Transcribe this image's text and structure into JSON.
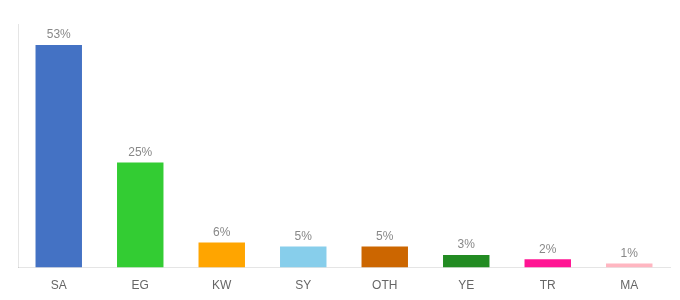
{
  "chart_data": {
    "type": "bar",
    "categories": [
      "SA",
      "EG",
      "KW",
      "SY",
      "OTH",
      "YE",
      "TR",
      "MA"
    ],
    "values": [
      53,
      25,
      6,
      5,
      5,
      3,
      2,
      1
    ],
    "value_labels": [
      "53%",
      "25%",
      "6%",
      "5%",
      "5%",
      "3%",
      "2%",
      "1%"
    ],
    "colors": [
      "#4472C4",
      "#33CC33",
      "#FFA500",
      "#87CEEB",
      "#CC6600",
      "#228B22",
      "#FF1493",
      "#FFB6C1"
    ],
    "ylim": [
      0,
      58
    ],
    "data_labels": true,
    "tick_labels": "x",
    "grid": false,
    "legend": false
  }
}
